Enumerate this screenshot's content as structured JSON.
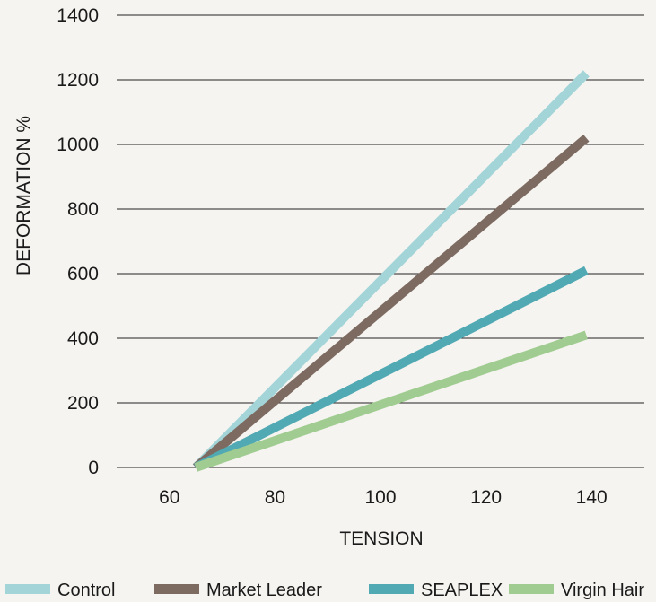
{
  "chart_data": {
    "type": "line",
    "xlabel": "TENSION",
    "ylabel": "DEFORMATION %",
    "xlim": [
      50,
      150
    ],
    "ylim": [
      0,
      1400
    ],
    "x_ticks": [
      60,
      80,
      100,
      120,
      140
    ],
    "y_ticks": [
      0,
      200,
      400,
      600,
      800,
      1000,
      1200,
      1400
    ],
    "grid": "horizontal",
    "legend_position": "bottom",
    "series": [
      {
        "name": "Control",
        "color": "#a3d4d8",
        "x": [
          65,
          139
        ],
        "values": [
          0,
          1220
        ]
      },
      {
        "name": "Market Leader",
        "color": "#7d6b61",
        "x": [
          65,
          139
        ],
        "values": [
          0,
          1020
        ]
      },
      {
        "name": "SEAPLEX",
        "color": "#51a9b4",
        "x": [
          65,
          139
        ],
        "values": [
          0,
          610
        ]
      },
      {
        "name": "Virgin Hair",
        "color": "#a0cc91",
        "x": [
          65,
          139
        ],
        "values": [
          0,
          410
        ]
      }
    ]
  }
}
